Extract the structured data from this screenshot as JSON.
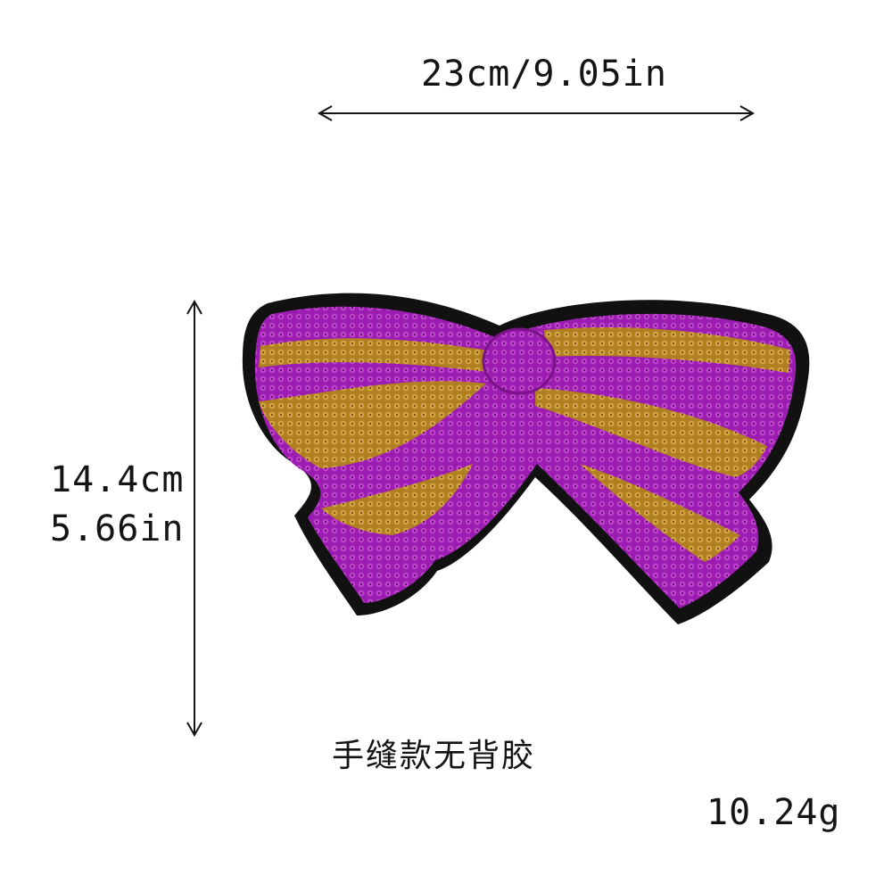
{
  "dimensions": {
    "width_label": "23cm/9.05in",
    "height_label_cm": "14.4cm",
    "height_label_in": "5.66in"
  },
  "note": "手缝款无背胶",
  "weight": "10.24g",
  "colors": {
    "sequin_purple": "#9b1cb0",
    "sequin_purple_light": "#c44ad0",
    "sequin_gold": "#c9962e",
    "border_black": "#111111",
    "text": "#141414"
  }
}
